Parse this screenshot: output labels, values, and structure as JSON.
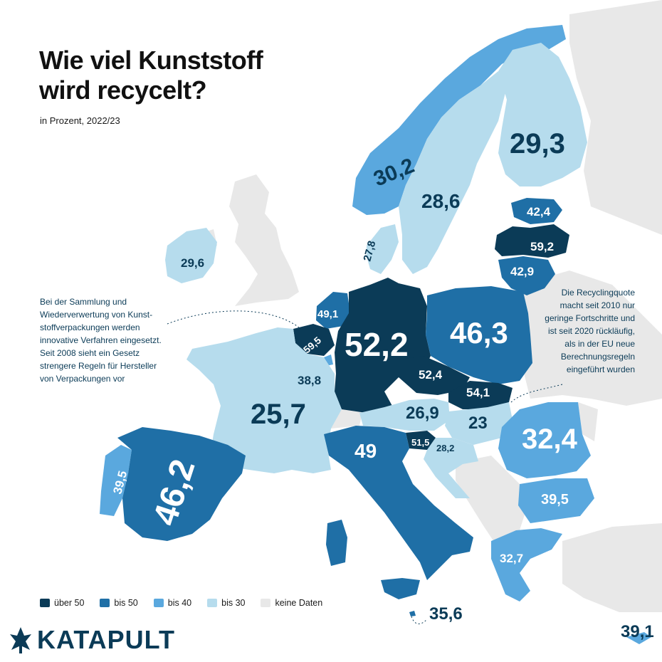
{
  "title_lines": [
    "Wie viel Kunststoff",
    "wird recycelt?"
  ],
  "subtitle": "in Prozent, 2022/23",
  "note_left": [
    "Bei der Sammlung und",
    "Wiederverwertung von Kunst-",
    "stoffverpackungen werden",
    "innovative Verfahren eingesetzt.",
    "Seit 2008 sieht ein Gesetz",
    "strengere Regeln für Hersteller",
    "von Verpackungen vor"
  ],
  "note_right": [
    "Die Recyclingquote",
    "macht seit 2010 nur",
    "geringe Fortschritte und",
    "ist seit 2020 rückläufig,",
    "als in der EU neue",
    "Berechnungsregeln",
    "eingeführt wurden"
  ],
  "legend": [
    {
      "label": "über 50",
      "color": "#0b3b57"
    },
    {
      "label": "bis 50",
      "color": "#1f6fa6"
    },
    {
      "label": "bis 40",
      "color": "#5aa8de"
    },
    {
      "label": "bis 30",
      "color": "#b6dced"
    },
    {
      "label": "keine Daten",
      "color": "#e8e8e8"
    }
  ],
  "brand": "KATAPULT",
  "colors": {
    "over50": "#0b3b57",
    "to50": "#1f6fa6",
    "to40": "#5aa8de",
    "to30": "#b6dced",
    "nodata": "#e8e8e8"
  },
  "values": {
    "norway": "30,2",
    "sweden": "28,6",
    "finland": "29,3",
    "estonia": "42,4",
    "latvia": "59,2",
    "lithuania": "42,9",
    "denmark": "27,8",
    "ireland": "29,6",
    "netherlands": "49,1",
    "belgium": "59,5",
    "luxembourg": "38,8",
    "germany": "52,2",
    "poland": "46,3",
    "czechia": "52,4",
    "slovakia": "54,1",
    "france": "25,7",
    "austria": "26,9",
    "hungary": "23",
    "slovenia": "51,5",
    "croatia": "28,2",
    "italy": "49",
    "romania": "32,4",
    "bulgaria": "39,5",
    "greece": "32,7",
    "portugal": "39,5",
    "spain": "46,2",
    "malta": "35,6",
    "cyprus": "39,1"
  }
}
